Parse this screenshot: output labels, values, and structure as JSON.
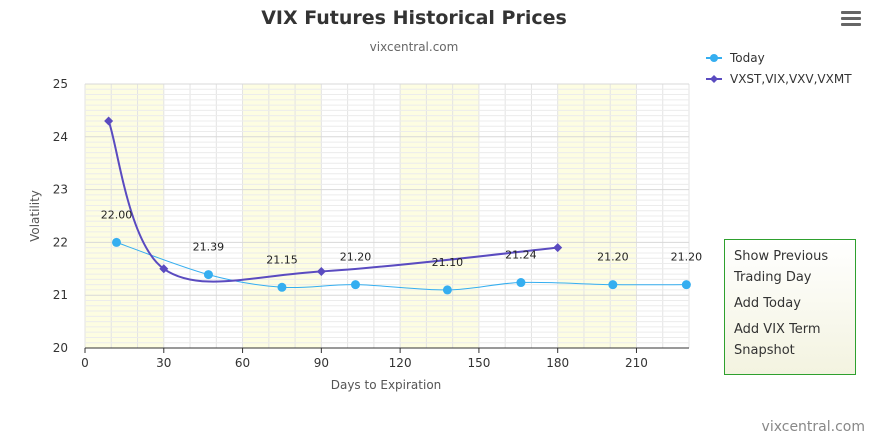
{
  "colors": {
    "today": "#35aef0",
    "historical": "#5a4bc0",
    "band": "#fdfde2",
    "panel_border": "#2ea02e"
  },
  "menu": {
    "icon": "hamburger-menu-icon"
  },
  "side_panel": {
    "item_previous": "Show Previous Trading Day",
    "item_today": "Add Today",
    "item_term": "Add VIX Term Snapshot"
  },
  "credit": "vixcentral.com",
  "chart_data": {
    "type": "line",
    "title": "VIX Futures Historical Prices",
    "subtitle": "vixcentral.com",
    "xlabel": "Days to Expiration",
    "ylabel": "Volatility",
    "xlim": [
      0,
      230
    ],
    "ylim": [
      20,
      25
    ],
    "x_ticks": [
      0,
      30,
      60,
      90,
      120,
      150,
      180,
      210
    ],
    "y_ticks": [
      20,
      21,
      22,
      23,
      24,
      25
    ],
    "grid": true,
    "legend_position": "top-right",
    "bands": [
      [
        0,
        30
      ],
      [
        60,
        90
      ],
      [
        120,
        150
      ],
      [
        180,
        210
      ]
    ],
    "series": [
      {
        "name": "Today",
        "marker": "circle",
        "points": [
          {
            "x": 12,
            "y": 22.0,
            "label": "22.00"
          },
          {
            "x": 47,
            "y": 21.39,
            "label": "21.39"
          },
          {
            "x": 75,
            "y": 21.15,
            "label": "21.15"
          },
          {
            "x": 103,
            "y": 21.2,
            "label": "21.20"
          },
          {
            "x": 138,
            "y": 21.1,
            "label": "21.10"
          },
          {
            "x": 166,
            "y": 21.24,
            "label": "21.24"
          },
          {
            "x": 201,
            "y": 21.2,
            "label": "21.20"
          },
          {
            "x": 229,
            "y": 21.2,
            "label": "21.20"
          }
        ]
      },
      {
        "name": "VXST,VIX,VXV,VXMT",
        "marker": "diamond",
        "points": [
          {
            "x": 9,
            "y": 24.3
          },
          {
            "x": 30,
            "y": 21.5
          },
          {
            "x": 90,
            "y": 21.45
          },
          {
            "x": 180,
            "y": 21.9
          }
        ]
      }
    ]
  }
}
